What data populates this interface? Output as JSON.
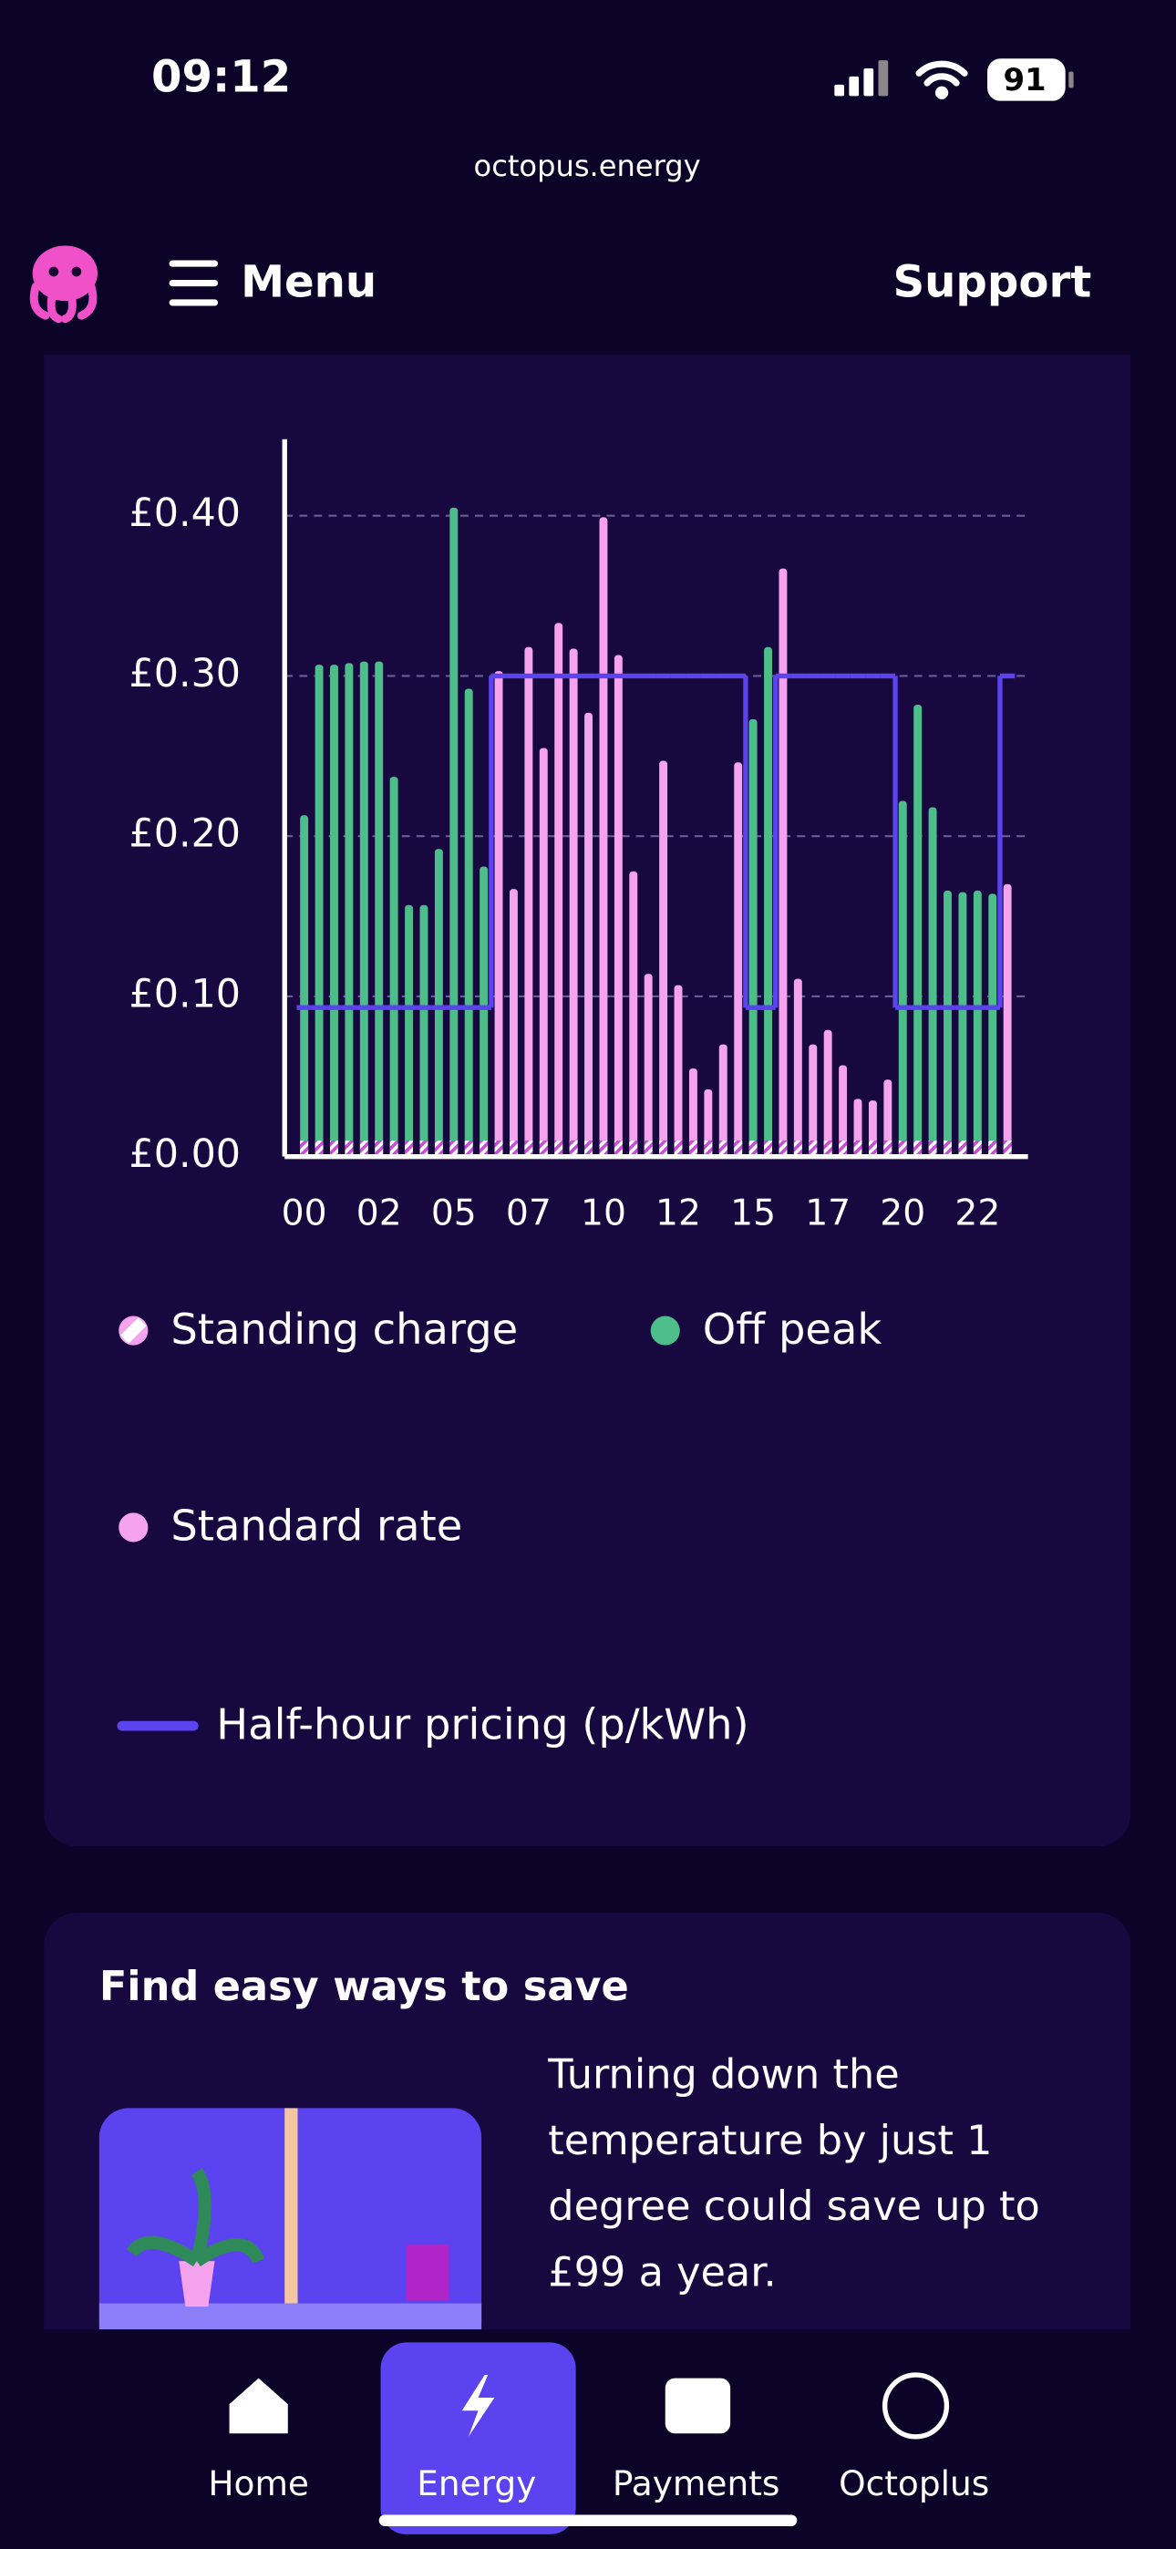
{
  "status_bar": {
    "time": "09:12",
    "battery": "91"
  },
  "url": "octopus.energy",
  "header": {
    "menu": "Menu",
    "support": "Support"
  },
  "chart_data": {
    "type": "bar",
    "categories": [
      "00",
      null,
      null,
      null,
      null,
      "02",
      null,
      null,
      null,
      null,
      "05",
      null,
      null,
      null,
      null,
      "07",
      null,
      null,
      null,
      null,
      "10",
      null,
      null,
      null,
      null,
      "12",
      null,
      null,
      null,
      null,
      "15",
      null,
      null,
      null,
      null,
      "17",
      null,
      null,
      null,
      null,
      "20",
      null,
      null,
      null,
      null,
      "22",
      null,
      null
    ],
    "ylim": [
      0,
      0.45
    ],
    "yticks": [
      {
        "value": 0,
        "label": "£0.00"
      },
      {
        "value": 0.1,
        "label": "£0.10"
      },
      {
        "value": 0.2,
        "label": "£0.20"
      },
      {
        "value": 0.3,
        "label": "£0.30"
      },
      {
        "value": 0.4,
        "label": "£0.40"
      }
    ],
    "grid": true,
    "series": [
      {
        "name": "Standing charge",
        "color": "#f5a3ee",
        "values": [
          0.01,
          0.01,
          0.01,
          0.01,
          0.01,
          0.01,
          0.01,
          0.01,
          0.01,
          0.01,
          0.01,
          0.01,
          0.01,
          0.01,
          0.01,
          0.01,
          0.01,
          0.01,
          0.01,
          0.01,
          0.01,
          0.01,
          0.01,
          0.01,
          0.01,
          0.01,
          0.01,
          0.01,
          0.01,
          0.01,
          0.01,
          0.01,
          0.01,
          0.01,
          0.01,
          0.01,
          0.01,
          0.01,
          0.01,
          0.01,
          0.01,
          0.01,
          0.01,
          0.01,
          0.01,
          0.01,
          0.01,
          0.01
        ]
      },
      {
        "name": "Off peak",
        "color": "#4dbd8a",
        "values": [
          0.213,
          0.307,
          0.307,
          0.308,
          0.309,
          0.309,
          0.237,
          0.157,
          0.157,
          0.192,
          0.405,
          0.292,
          0.181,
          null,
          null,
          null,
          null,
          null,
          null,
          null,
          null,
          null,
          null,
          null,
          null,
          null,
          null,
          null,
          null,
          null,
          0.273,
          0.318,
          null,
          null,
          null,
          null,
          null,
          null,
          null,
          null,
          0.222,
          0.282,
          0.218,
          0.166,
          0.165,
          0.166,
          0.164,
          null
        ]
      },
      {
        "name": "Standard rate",
        "color": "#f5a3ee",
        "values": [
          null,
          null,
          null,
          null,
          null,
          null,
          null,
          null,
          null,
          null,
          null,
          null,
          null,
          0.303,
          0.167,
          0.318,
          0.255,
          0.333,
          0.317,
          0.277,
          0.399,
          0.313,
          0.178,
          0.114,
          0.247,
          0.107,
          0.055,
          0.042,
          0.07,
          0.246,
          null,
          null,
          0.367,
          0.111,
          0.07,
          0.079,
          0.057,
          0.036,
          0.035,
          0.048,
          null,
          null,
          null,
          null,
          null,
          null,
          null,
          0.17
        ]
      },
      {
        "name": "Half-hour pricing (p/kWh)",
        "color": "#5b43f0",
        "values": [
          0.093,
          0.093,
          0.093,
          0.093,
          0.093,
          0.093,
          0.093,
          0.093,
          0.093,
          0.093,
          0.093,
          0.093,
          0.093,
          0.3,
          0.3,
          0.3,
          0.3,
          0.3,
          0.3,
          0.3,
          0.3,
          0.3,
          0.3,
          0.3,
          0.3,
          0.3,
          0.3,
          0.3,
          0.3,
          0.3,
          0.093,
          0.093,
          0.3,
          0.3,
          0.3,
          0.3,
          0.3,
          0.3,
          0.3,
          0.3,
          0.093,
          0.093,
          0.093,
          0.093,
          0.093,
          0.093,
          0.093,
          0.3
        ]
      }
    ]
  },
  "tips": {
    "title": "Find easy ways to save",
    "lines": [
      "Turning down the",
      "temperature by just 1",
      "degree could save up to",
      "£99 a year."
    ]
  },
  "nav": [
    "Home",
    "Energy",
    "Payments",
    "Octoplus"
  ]
}
